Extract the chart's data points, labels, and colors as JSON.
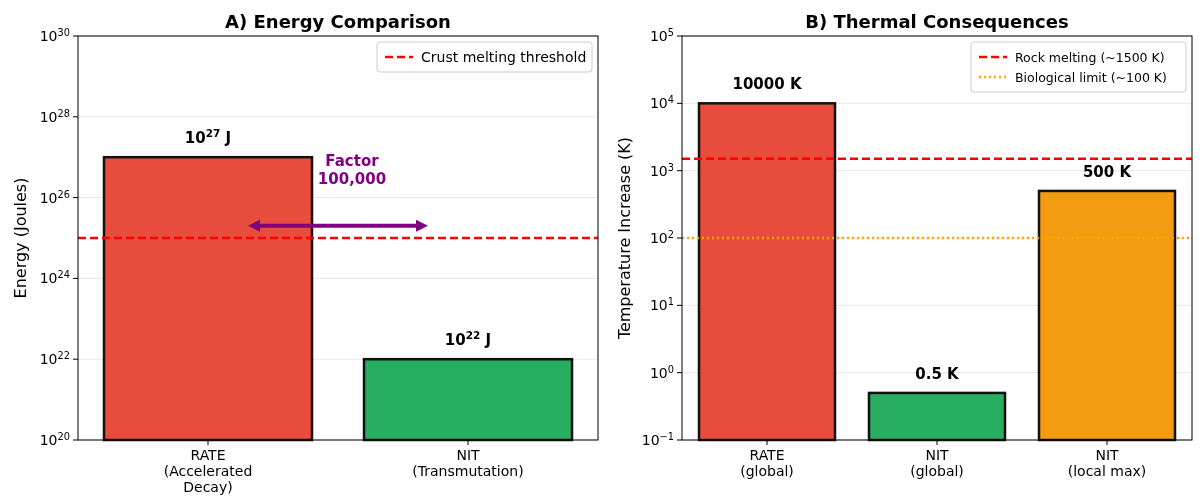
{
  "chart_data": [
    {
      "type": "bar",
      "title": "A) Energy Comparison",
      "ylabel": "Energy (Joules)",
      "categories": [
        "RATE\n(Accelerated\nDecay)",
        "NIT\n(Transmutation)"
      ],
      "values": [
        1e+27,
        1e+22
      ],
      "colors": [
        "#e74c3c",
        "#27ae60"
      ],
      "log": "y",
      "ylim": [
        1e+20,
        1e+30
      ],
      "yticks": [
        {
          "value": 1e+20,
          "label": "10$^{20}$"
        },
        {
          "value": 1e+22,
          "label": "10$^{22}$"
        },
        {
          "value": 1e+24,
          "label": "10$^{24}$"
        },
        {
          "value": 1e+26,
          "label": "10$^{26}$"
        },
        {
          "value": 1e+28,
          "label": "10$^{28}$"
        },
        {
          "value": 1e+30,
          "label": "10$^{30}$"
        }
      ],
      "grid": "y",
      "legend": "top right",
      "ref_lines": [
        {
          "axis": "y",
          "value": 1e+25,
          "label": "Crust melting threshold",
          "color": "#ff0000",
          "line_style": "dashed"
        }
      ],
      "annotations": [
        "Factor\n100,000",
        {
          "text": "10$^{27}$ J",
          "x": "RATE\n(Accelerated\nDecay)",
          "y": 1e+27
        },
        {
          "text": "10$^{22}$ J",
          "x": "NIT\n(Transmutation)",
          "y": 1e+22
        }
      ]
    },
    {
      "type": "bar",
      "title": "B) Thermal Consequences",
      "ylabel": "Temperature Increase (K)",
      "categories": [
        "RATE\n(global)",
        "NIT\n(global)",
        "NIT\n(local max)"
      ],
      "values": [
        10000,
        0.5,
        500
      ],
      "colors": [
        "#e74c3c",
        "#27ae60",
        "#f39c12"
      ],
      "value_labels": [
        "10000 K",
        "0.5 K",
        "500 K"
      ],
      "log": "y",
      "ylim": [
        0.1,
        100000
      ],
      "yticks": [
        {
          "value": 0.1,
          "label": "10$^{−1}$"
        },
        {
          "value": 1,
          "label": "10$^{0}$"
        },
        {
          "value": 10,
          "label": "10$^{1}$"
        },
        {
          "value": 100,
          "label": "10$^{2}$"
        },
        {
          "value": 1000,
          "label": "10$^{3}$"
        },
        {
          "value": 10000,
          "label": "10$^{4}$"
        },
        {
          "value": 100000,
          "label": "10$^{5}$"
        }
      ],
      "grid": "y",
      "legend": "top right",
      "ref_lines": [
        {
          "axis": "y",
          "value": 1500,
          "label": "Rock melting (~1500 K)",
          "color": "#ff0000",
          "line_style": "dashed"
        },
        {
          "axis": "y",
          "value": 100,
          "label": "Biological limit (~100 K)",
          "color": "#ffa500",
          "line_style": "dotted"
        }
      ]
    }
  ]
}
